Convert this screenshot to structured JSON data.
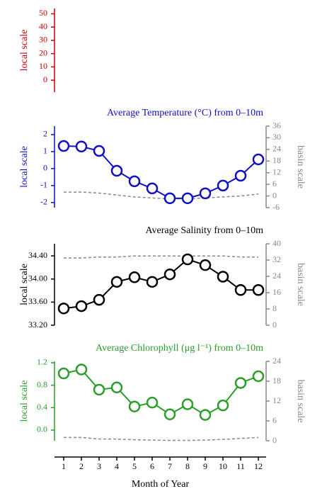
{
  "chart_data": [
    {
      "type": "line",
      "ylabel": "local scale",
      "color": "#cc0000",
      "ylim": [
        -9,
        54
      ],
      "yticks": [
        0,
        10,
        20,
        30,
        40,
        50
      ],
      "series": []
    },
    {
      "type": "line",
      "title": "Average Temperature (°C) from 0–10m",
      "ylabel": "local scale",
      "y2label": "basin scale",
      "color": "#1010c0",
      "y2color": "#888888",
      "ylim": [
        -2.3,
        2.5
      ],
      "yticks": [
        -2,
        -1,
        0,
        1,
        2
      ],
      "y2lim": [
        -6,
        36
      ],
      "y2ticks": [
        -6,
        0,
        6,
        12,
        18,
        24,
        30,
        36
      ],
      "series": [
        {
          "color": "#1010c0",
          "values": [
            1.33,
            1.3,
            1.04,
            -0.13,
            -0.75,
            -1.17,
            -1.75,
            -1.75,
            -1.46,
            -1.0,
            -0.42,
            0.54
          ]
        },
        {
          "color": "#888888",
          "axis": "y2",
          "dashed": true,
          "values": [
            2,
            2,
            1.5,
            0.5,
            -0.5,
            -1,
            -1.5,
            -1.5,
            -1,
            -0.5,
            0,
            1
          ]
        }
      ]
    },
    {
      "type": "line",
      "title": "Average Salinity from 0–10m",
      "ylabel": "local scale",
      "y2label": "basin scale",
      "color": "#000000",
      "y2color": "#888888",
      "ylim": [
        33.2,
        34.61
      ],
      "yticks": [
        {
          "value": 33.2,
          "label": "33.20"
        },
        {
          "value": 33.6,
          "label": "33.60"
        },
        {
          "value": 34.0,
          "label": "34.00"
        },
        {
          "value": 34.4,
          "label": "34.40"
        }
      ],
      "y2lim": [
        0,
        40
      ],
      "y2ticks": [
        0,
        8,
        16,
        24,
        32,
        40
      ],
      "series": [
        {
          "color": "#000000",
          "values": [
            33.49,
            33.53,
            33.64,
            33.95,
            34.03,
            33.95,
            34.08,
            34.34,
            34.24,
            34.04,
            33.81,
            33.81
          ]
        },
        {
          "color": "#888888",
          "axis": "y2",
          "dashed": true,
          "values": [
            33,
            33,
            33.5,
            33.5,
            34,
            34,
            34,
            34,
            34,
            34,
            33.5,
            33.5
          ]
        }
      ]
    },
    {
      "type": "line",
      "title": "Average Chlorophyll (μg l⁻¹) from 0–10m",
      "ylabel": "local scale",
      "y2label": "basin scale",
      "color": "#2a9d2a",
      "y2color": "#888888",
      "ylim": [
        -0.19,
        1.225
      ],
      "yticks": [
        {
          "value": 0,
          "label": "0.0"
        },
        0.4,
        0.8,
        1.2
      ],
      "y2lim": [
        0,
        24
      ],
      "y2ticks": [
        0,
        6,
        12,
        18,
        24
      ],
      "xlabel": "Month of Year",
      "categories": [
        1,
        2,
        3,
        4,
        5,
        6,
        7,
        8,
        9,
        10,
        11,
        12
      ],
      "series": [
        {
          "color": "#2a9d2a",
          "values": [
            1.01,
            1.08,
            0.72,
            0.76,
            0.42,
            0.49,
            0.28,
            0.46,
            0.27,
            0.44,
            0.84,
            0.96
          ]
        },
        {
          "color": "#888888",
          "axis": "y2",
          "dashed": true,
          "values": [
            1,
            1,
            0.5,
            0.5,
            0.3,
            0.2,
            0.1,
            0.1,
            0.2,
            0.4,
            0.7,
            1
          ]
        }
      ]
    }
  ]
}
